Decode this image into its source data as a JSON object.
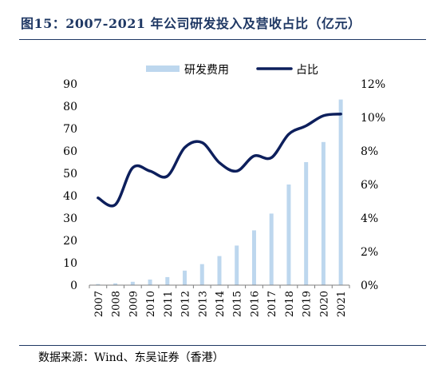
{
  "header": {
    "title": "图15：2007-2021 年公司研发投入及营收占比（亿元）"
  },
  "footer": {
    "source": "数据来源：Wind、东吴证券（香港）"
  },
  "colors": {
    "bar": "#bdd7ee",
    "line": "#0d1f5c",
    "rule": "#1f3864",
    "title": "#1f3864"
  },
  "chart_data": {
    "type": "bar",
    "categories": [
      "2007",
      "2008",
      "2009",
      "2010",
      "2011",
      "2012",
      "2013",
      "2014",
      "2015",
      "2016",
      "2017",
      "2018",
      "2019",
      "2020",
      "2021"
    ],
    "series": [
      {
        "name": "研发费用",
        "type": "bar",
        "axis": "left",
        "values": [
          0.5,
          0.8,
          1.5,
          2.5,
          3.6,
          6.5,
          9.4,
          13,
          17.7,
          24.5,
          32,
          45,
          55,
          64,
          83
        ]
      },
      {
        "name": "占比",
        "type": "line",
        "axis": "right",
        "values": [
          5.2,
          4.8,
          7.0,
          6.8,
          6.5,
          8.2,
          8.5,
          7.3,
          6.8,
          7.7,
          7.6,
          9.0,
          9.5,
          10.1,
          10.2
        ]
      }
    ],
    "y_left": {
      "min": 0,
      "max": 90,
      "ticks": [
        "0",
        "10",
        "20",
        "30",
        "40",
        "50",
        "60",
        "70",
        "80",
        "90"
      ]
    },
    "y_right": {
      "min": 0,
      "max": 12,
      "ticks": [
        "0%",
        "2%",
        "4%",
        "6%",
        "8%",
        "10%",
        "12%"
      ]
    },
    "legend": {
      "position": "top",
      "bar_label": "研发费用",
      "line_label": "占比"
    },
    "grid": false
  }
}
